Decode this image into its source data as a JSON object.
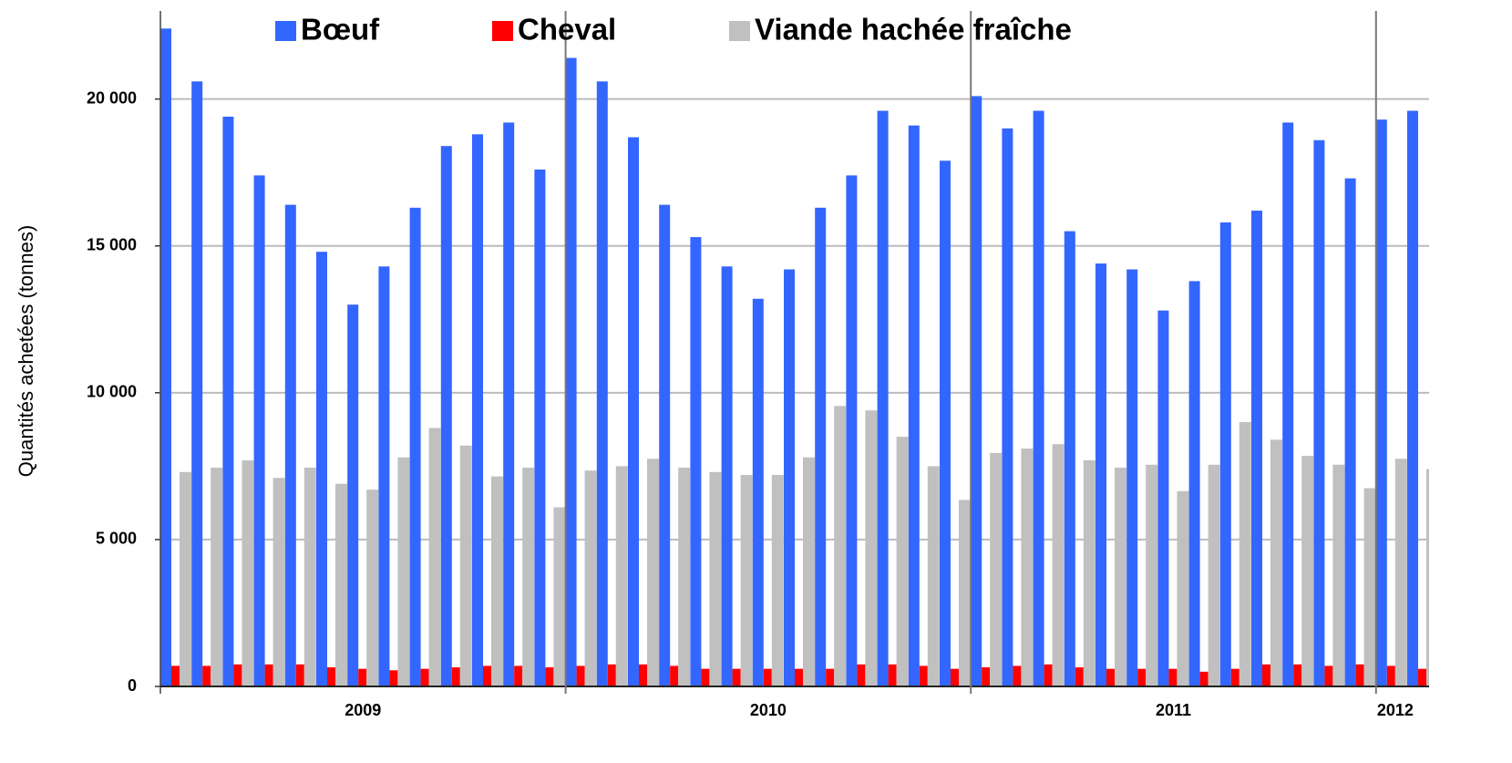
{
  "chart_data": {
    "type": "bar",
    "ylabel": "Quantités achetées (tonnes)",
    "year_labels": [
      "2009",
      "2010",
      "2011",
      "2012"
    ],
    "categories": [
      null,
      null,
      null,
      null,
      null,
      null,
      null,
      null,
      null,
      null,
      null,
      null,
      null,
      null,
      null,
      null,
      null,
      null,
      null,
      null,
      null,
      null,
      null,
      null,
      null,
      null,
      null,
      null,
      null,
      null,
      null,
      null,
      null,
      null,
      null,
      null,
      null,
      null,
      null,
      null,
      null
    ],
    "series": [
      {
        "name": "Bœuf",
        "color": "#3366ff",
        "values": [
          22400,
          20600,
          19400,
          17400,
          16400,
          14800,
          13000,
          14300,
          16300,
          18400,
          18800,
          19200,
          17600,
          21400,
          20600,
          18700,
          16400,
          15300,
          14300,
          13200,
          14200,
          16300,
          17400,
          19600,
          19100,
          17900,
          20100,
          19000,
          19600,
          15500,
          14400,
          14200,
          12800,
          13800,
          15800,
          16200,
          19200,
          18600,
          17300,
          19300,
          19600
        ]
      },
      {
        "name": "Cheval",
        "color": "#ff0000",
        "values": [
          700,
          700,
          750,
          750,
          750,
          650,
          600,
          550,
          600,
          650,
          700,
          700,
          650,
          700,
          750,
          750,
          700,
          600,
          600,
          600,
          600,
          600,
          750,
          750,
          700,
          600,
          650,
          700,
          750,
          650,
          600,
          600,
          600,
          500,
          600,
          750,
          750,
          700,
          750,
          700,
          600
        ]
      },
      {
        "name": "Viande hachée fraîche",
        "color": "#c0c0c0",
        "values": [
          7300,
          7450,
          7700,
          7100,
          7450,
          6900,
          6700,
          7800,
          8800,
          8200,
          7150,
          7450,
          6100,
          7350,
          7500,
          7750,
          7450,
          7300,
          7200,
          7200,
          7800,
          9550,
          9400,
          8500,
          7500,
          6350,
          7950,
          8100,
          8250,
          7700,
          7450,
          7550,
          6650,
          7550,
          9000,
          8400,
          7850,
          7550,
          6750,
          7750,
          7400
        ]
      }
    ],
    "ylim": [
      0,
      23000
    ],
    "yticks": [
      0,
      {
        "value": 5000,
        "label": "5 000"
      },
      {
        "value": 10000,
        "label": "10 000"
      },
      {
        "value": 15000,
        "label": "15 000"
      },
      {
        "value": 20000,
        "label": "20 000"
      }
    ],
    "grid": true
  }
}
